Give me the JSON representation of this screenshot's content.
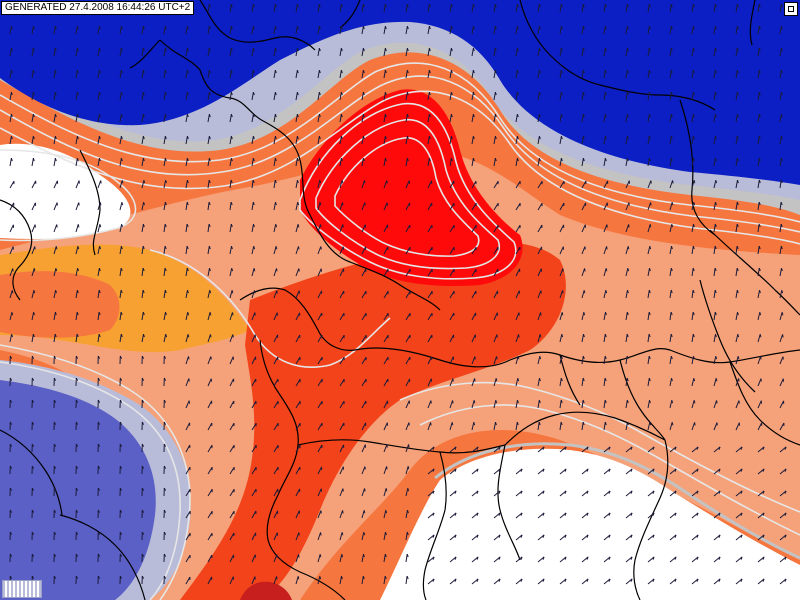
{
  "header": {
    "stamp": "GENERATED 27.4.2008 16:44:26 UTC+2"
  },
  "palette": {
    "deep_blue": "#0b1fc4",
    "mid_blue": "#5b60c6",
    "pale_blue": "#b9bcd8",
    "gray": "#c3c3c3",
    "white": "#ffffff",
    "light_orange": "#f5a27a",
    "orange": "#f7a133",
    "salmon": "#f6763f",
    "red_orange": "#f2431b",
    "red": "#ff0a0a",
    "dark_red": "#c71e1e",
    "isoline": "#e6e6e6",
    "border": "#000000",
    "arrow": "#1b1b3a"
  },
  "icons": {
    "toggle": "window-toggle-icon",
    "legend": "legend-swatch-icon"
  }
}
